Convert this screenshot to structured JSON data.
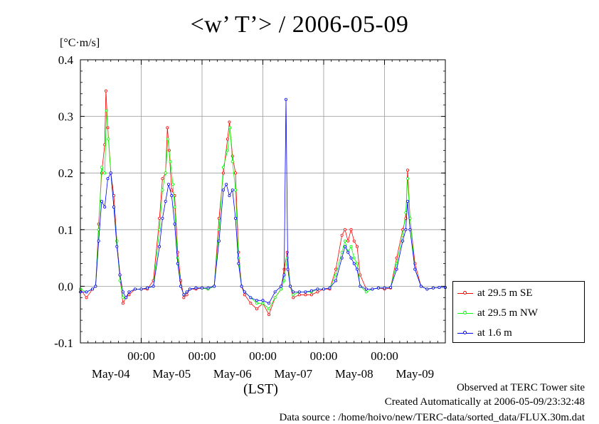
{
  "title": "<w’ T’> / 2006-05-09",
  "unit_label": "[°C·m/s]",
  "x_axis_label": "(LST)",
  "footer": {
    "line1": "Observed at TERC Tower site",
    "line2": "Created Automatically at 2006-05-09/23:32:48",
    "line3": "Data source : /home/hoivo/new/TERC-data/sorted_data/FLUX.30m.dat"
  },
  "chart_data": {
    "type": "line",
    "ylim": [
      -0.1,
      0.4
    ],
    "yticks": [
      -0.1,
      0.0,
      0.1,
      0.2,
      0.3,
      0.4
    ],
    "ytick_labels": [
      "-0.1",
      "0.0",
      "0.1",
      "0.2",
      "0.3",
      "0.4"
    ],
    "xlim_days": [
      0.0,
      6.0
    ],
    "midnight_ticks_days": [
      1,
      2,
      3,
      4,
      5
    ],
    "midnight_tick_label": "00:00",
    "date_labels": [
      "May-04",
      "May-05",
      "May-06",
      "May-07",
      "May-08",
      "May-09"
    ],
    "grid": true,
    "legend_placement": "outside-right-bottom",
    "series": [
      {
        "name": "at 29.5 m SE",
        "color": "#ff0000",
        "points": [
          [
            0.0,
            -0.005
          ],
          [
            0.1,
            -0.02
          ],
          [
            0.2,
            -0.005
          ],
          [
            0.25,
            0.0
          ],
          [
            0.3,
            0.11
          ],
          [
            0.35,
            0.2
          ],
          [
            0.4,
            0.25
          ],
          [
            0.42,
            0.345
          ],
          [
            0.45,
            0.28
          ],
          [
            0.5,
            0.2
          ],
          [
            0.55,
            0.16
          ],
          [
            0.6,
            0.08
          ],
          [
            0.65,
            0.02
          ],
          [
            0.7,
            -0.03
          ],
          [
            0.75,
            -0.02
          ],
          [
            0.8,
            -0.015
          ],
          [
            0.9,
            -0.005
          ],
          [
            1.0,
            -0.005
          ],
          [
            1.1,
            -0.005
          ],
          [
            1.2,
            0.01
          ],
          [
            1.3,
            0.12
          ],
          [
            1.35,
            0.19
          ],
          [
            1.4,
            0.2
          ],
          [
            1.43,
            0.28
          ],
          [
            1.46,
            0.24
          ],
          [
            1.5,
            0.17
          ],
          [
            1.55,
            0.16
          ],
          [
            1.6,
            0.06
          ],
          [
            1.65,
            0.01
          ],
          [
            1.7,
            -0.02
          ],
          [
            1.75,
            -0.015
          ],
          [
            1.8,
            -0.005
          ],
          [
            1.9,
            -0.005
          ],
          [
            2.0,
            -0.003
          ],
          [
            2.1,
            -0.005
          ],
          [
            2.2,
            0.0
          ],
          [
            2.28,
            0.12
          ],
          [
            2.35,
            0.2
          ],
          [
            2.42,
            0.26
          ],
          [
            2.45,
            0.29
          ],
          [
            2.5,
            0.23
          ],
          [
            2.55,
            0.2
          ],
          [
            2.6,
            0.06
          ],
          [
            2.65,
            0.0
          ],
          [
            2.7,
            -0.015
          ],
          [
            2.8,
            -0.03
          ],
          [
            2.9,
            -0.04
          ],
          [
            3.0,
            -0.03
          ],
          [
            3.1,
            -0.05
          ],
          [
            3.2,
            -0.02
          ],
          [
            3.3,
            -0.005
          ],
          [
            3.35,
            0.03
          ],
          [
            3.4,
            0.06
          ],
          [
            3.45,
            0.0
          ],
          [
            3.5,
            -0.02
          ],
          [
            3.6,
            -0.015
          ],
          [
            3.7,
            -0.015
          ],
          [
            3.8,
            -0.015
          ],
          [
            3.9,
            -0.01
          ],
          [
            4.0,
            -0.005
          ],
          [
            4.1,
            -0.005
          ],
          [
            4.2,
            0.03
          ],
          [
            4.3,
            0.09
          ],
          [
            4.35,
            0.1
          ],
          [
            4.4,
            0.08
          ],
          [
            4.45,
            0.1
          ],
          [
            4.5,
            0.08
          ],
          [
            4.55,
            0.07
          ],
          [
            4.6,
            0.02
          ],
          [
            4.7,
            -0.005
          ],
          [
            4.8,
            -0.005
          ],
          [
            4.9,
            -0.003
          ],
          [
            5.0,
            -0.005
          ],
          [
            5.1,
            -0.003
          ],
          [
            5.2,
            0.05
          ],
          [
            5.3,
            0.1
          ],
          [
            5.35,
            0.12
          ],
          [
            5.38,
            0.205
          ],
          [
            5.42,
            0.12
          ],
          [
            5.5,
            0.04
          ],
          [
            5.6,
            0.0
          ],
          [
            5.7,
            -0.005
          ],
          [
            5.8,
            -0.003
          ],
          [
            5.9,
            -0.002
          ],
          [
            6.0,
            -0.002
          ]
        ]
      },
      {
        "name": "at 29.5 m NW",
        "color": "#00ff00",
        "points": [
          [
            0.0,
            -0.005
          ],
          [
            0.1,
            -0.01
          ],
          [
            0.2,
            -0.005
          ],
          [
            0.25,
            0.0
          ],
          [
            0.3,
            0.1
          ],
          [
            0.35,
            0.21
          ],
          [
            0.4,
            0.2
          ],
          [
            0.43,
            0.31
          ],
          [
            0.46,
            0.26
          ],
          [
            0.5,
            0.2
          ],
          [
            0.55,
            0.14
          ],
          [
            0.6,
            0.08
          ],
          [
            0.65,
            0.01
          ],
          [
            0.7,
            -0.02
          ],
          [
            0.75,
            -0.02
          ],
          [
            0.8,
            -0.01
          ],
          [
            0.9,
            -0.005
          ],
          [
            1.0,
            -0.005
          ],
          [
            1.1,
            -0.003
          ],
          [
            1.2,
            0.0
          ],
          [
            1.3,
            0.1
          ],
          [
            1.35,
            0.17
          ],
          [
            1.4,
            0.2
          ],
          [
            1.44,
            0.26
          ],
          [
            1.48,
            0.22
          ],
          [
            1.52,
            0.18
          ],
          [
            1.55,
            0.14
          ],
          [
            1.6,
            0.05
          ],
          [
            1.65,
            0.0
          ],
          [
            1.7,
            -0.015
          ],
          [
            1.75,
            -0.01
          ],
          [
            1.8,
            -0.005
          ],
          [
            1.9,
            -0.003
          ],
          [
            2.0,
            -0.003
          ],
          [
            2.1,
            -0.005
          ],
          [
            2.2,
            0.0
          ],
          [
            2.28,
            0.1
          ],
          [
            2.35,
            0.21
          ],
          [
            2.42,
            0.24
          ],
          [
            2.46,
            0.28
          ],
          [
            2.5,
            0.22
          ],
          [
            2.55,
            0.17
          ],
          [
            2.6,
            0.05
          ],
          [
            2.65,
            0.0
          ],
          [
            2.7,
            -0.01
          ],
          [
            2.8,
            -0.02
          ],
          [
            2.9,
            -0.03
          ],
          [
            3.0,
            -0.03
          ],
          [
            3.1,
            -0.04
          ],
          [
            3.2,
            -0.02
          ],
          [
            3.3,
            -0.005
          ],
          [
            3.35,
            0.01
          ],
          [
            3.4,
            0.05
          ],
          [
            3.45,
            0.0
          ],
          [
            3.5,
            -0.015
          ],
          [
            3.6,
            -0.01
          ],
          [
            3.7,
            -0.01
          ],
          [
            3.8,
            -0.01
          ],
          [
            3.9,
            -0.005
          ],
          [
            4.0,
            -0.005
          ],
          [
            4.1,
            -0.003
          ],
          [
            4.2,
            0.02
          ],
          [
            4.3,
            0.06
          ],
          [
            4.35,
            0.08
          ],
          [
            4.4,
            0.06
          ],
          [
            4.45,
            0.07
          ],
          [
            4.5,
            0.05
          ],
          [
            4.55,
            0.04
          ],
          [
            4.6,
            0.0
          ],
          [
            4.7,
            -0.01
          ],
          [
            4.8,
            -0.005
          ],
          [
            4.9,
            -0.003
          ],
          [
            5.0,
            -0.003
          ],
          [
            5.1,
            -0.002
          ],
          [
            5.2,
            0.04
          ],
          [
            5.3,
            0.09
          ],
          [
            5.35,
            0.13
          ],
          [
            5.38,
            0.19
          ],
          [
            5.42,
            0.12
          ],
          [
            5.5,
            0.03
          ],
          [
            5.6,
            0.0
          ],
          [
            5.7,
            -0.005
          ],
          [
            5.8,
            -0.003
          ],
          [
            5.9,
            -0.002
          ],
          [
            6.0,
            -0.002
          ]
        ]
      },
      {
        "name": "at 1.6 m",
        "color": "#0000ff",
        "points": [
          [
            0.0,
            -0.01
          ],
          [
            0.1,
            -0.01
          ],
          [
            0.2,
            -0.005
          ],
          [
            0.25,
            0.0
          ],
          [
            0.3,
            0.08
          ],
          [
            0.35,
            0.15
          ],
          [
            0.4,
            0.14
          ],
          [
            0.45,
            0.19
          ],
          [
            0.5,
            0.2
          ],
          [
            0.55,
            0.14
          ],
          [
            0.6,
            0.07
          ],
          [
            0.65,
            0.02
          ],
          [
            0.7,
            -0.01
          ],
          [
            0.75,
            -0.02
          ],
          [
            0.8,
            -0.01
          ],
          [
            0.9,
            -0.005
          ],
          [
            1.0,
            -0.005
          ],
          [
            1.1,
            -0.003
          ],
          [
            1.2,
            0.0
          ],
          [
            1.3,
            0.07
          ],
          [
            1.35,
            0.12
          ],
          [
            1.4,
            0.15
          ],
          [
            1.45,
            0.18
          ],
          [
            1.5,
            0.16
          ],
          [
            1.55,
            0.11
          ],
          [
            1.6,
            0.04
          ],
          [
            1.65,
            0.0
          ],
          [
            1.7,
            -0.015
          ],
          [
            1.75,
            -0.01
          ],
          [
            1.8,
            -0.005
          ],
          [
            1.9,
            -0.003
          ],
          [
            2.0,
            -0.003
          ],
          [
            2.1,
            -0.003
          ],
          [
            2.2,
            0.0
          ],
          [
            2.28,
            0.08
          ],
          [
            2.35,
            0.17
          ],
          [
            2.4,
            0.18
          ],
          [
            2.45,
            0.16
          ],
          [
            2.5,
            0.17
          ],
          [
            2.55,
            0.12
          ],
          [
            2.6,
            0.04
          ],
          [
            2.65,
            0.0
          ],
          [
            2.7,
            -0.01
          ],
          [
            2.8,
            -0.02
          ],
          [
            2.9,
            -0.025
          ],
          [
            3.0,
            -0.025
          ],
          [
            3.1,
            -0.03
          ],
          [
            3.2,
            -0.01
          ],
          [
            3.3,
            0.0
          ],
          [
            3.35,
            0.02
          ],
          [
            3.38,
            0.33
          ],
          [
            3.41,
            0.03
          ],
          [
            3.45,
            0.0
          ],
          [
            3.5,
            -0.01
          ],
          [
            3.6,
            -0.01
          ],
          [
            3.7,
            -0.01
          ],
          [
            3.8,
            -0.008
          ],
          [
            3.9,
            -0.005
          ],
          [
            4.0,
            -0.005
          ],
          [
            4.1,
            -0.003
          ],
          [
            4.2,
            0.01
          ],
          [
            4.3,
            0.05
          ],
          [
            4.35,
            0.07
          ],
          [
            4.4,
            0.06
          ],
          [
            4.45,
            0.05
          ],
          [
            4.5,
            0.04
          ],
          [
            4.55,
            0.03
          ],
          [
            4.6,
            0.0
          ],
          [
            4.7,
            -0.005
          ],
          [
            4.8,
            -0.005
          ],
          [
            4.9,
            -0.003
          ],
          [
            5.0,
            -0.003
          ],
          [
            5.1,
            -0.002
          ],
          [
            5.2,
            0.03
          ],
          [
            5.3,
            0.08
          ],
          [
            5.35,
            0.1
          ],
          [
            5.38,
            0.15
          ],
          [
            5.42,
            0.1
          ],
          [
            5.5,
            0.03
          ],
          [
            5.6,
            0.0
          ],
          [
            5.7,
            -0.005
          ],
          [
            5.8,
            -0.003
          ],
          [
            5.9,
            -0.002
          ],
          [
            6.0,
            -0.002
          ]
        ]
      }
    ]
  }
}
